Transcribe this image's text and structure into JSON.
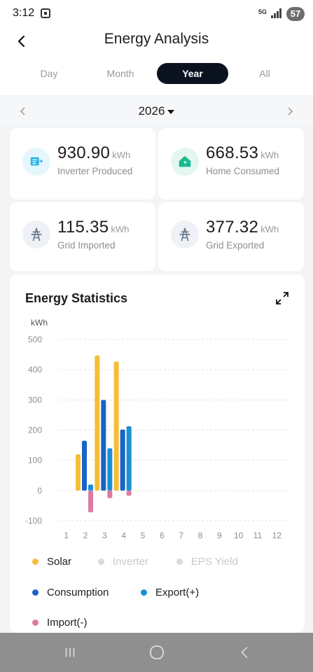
{
  "status": {
    "time": "3:12",
    "network": "5G",
    "battery": "57"
  },
  "header": {
    "title": "Energy Analysis"
  },
  "tabs": [
    {
      "label": "Day",
      "active": false
    },
    {
      "label": "Month",
      "active": false
    },
    {
      "label": "Year",
      "active": true
    },
    {
      "label": "All",
      "active": false
    }
  ],
  "year_selector": {
    "year": "2026"
  },
  "metrics": [
    {
      "value": "930.90",
      "unit": "kWh",
      "label": "Inverter Produced",
      "icon": "inverter-icon",
      "color": "#2bb5e8"
    },
    {
      "value": "668.53",
      "unit": "kWh",
      "label": "Home Consumed",
      "icon": "home-icon",
      "color": "#1bb98f"
    },
    {
      "value": "115.35",
      "unit": "kWh",
      "label": "Grid Imported",
      "icon": "grid-tower-icon",
      "color": "#6b7a90"
    },
    {
      "value": "377.32",
      "unit": "kWh",
      "label": "Grid Exported",
      "icon": "grid-tower-icon",
      "color": "#6b7a90"
    }
  ],
  "stats": {
    "title": "Energy Statistics"
  },
  "chart_data": {
    "type": "bar",
    "ylabel": "kWh",
    "ylim": [
      -100,
      500
    ],
    "yticks": [
      500,
      400,
      300,
      200,
      100,
      0,
      -100
    ],
    "categories": [
      "1",
      "2",
      "3",
      "4",
      "5",
      "6",
      "7",
      "8",
      "9",
      "10",
      "11",
      "12"
    ],
    "grid": true,
    "series": [
      {
        "name": "Solar",
        "color": "#f5bd3a",
        "values": [
          0,
          120,
          447,
          427,
          0,
          0,
          0,
          0,
          0,
          0,
          0,
          0
        ]
      },
      {
        "name": "Consumption",
        "color": "#1764c8",
        "values": [
          0,
          165,
          300,
          202,
          0,
          0,
          0,
          0,
          0,
          0,
          0,
          0
        ]
      },
      {
        "name": "Export(+)",
        "color": "#1a8fd6",
        "values": [
          0,
          20,
          140,
          213,
          0,
          0,
          0,
          0,
          0,
          0,
          0,
          0
        ]
      },
      {
        "name": "Import(-)",
        "color": "#e07aa3",
        "values": [
          0,
          -72,
          -25,
          -17,
          0,
          0,
          0,
          0,
          0,
          0,
          0,
          0
        ]
      }
    ]
  },
  "legend": [
    {
      "name": "Solar",
      "color": "#f5bd3a",
      "muted": false
    },
    {
      "name": "Inverter",
      "color": "#d9d9de",
      "muted": true
    },
    {
      "name": "EPS Yield",
      "color": "#d9d9de",
      "muted": true
    },
    {
      "name": "Consumption",
      "color": "#1764c8",
      "muted": false
    },
    {
      "name": "Export(+)",
      "color": "#1a8fd6",
      "muted": false
    },
    {
      "name": "Import(-)",
      "color": "#e07aa3",
      "muted": false
    }
  ]
}
